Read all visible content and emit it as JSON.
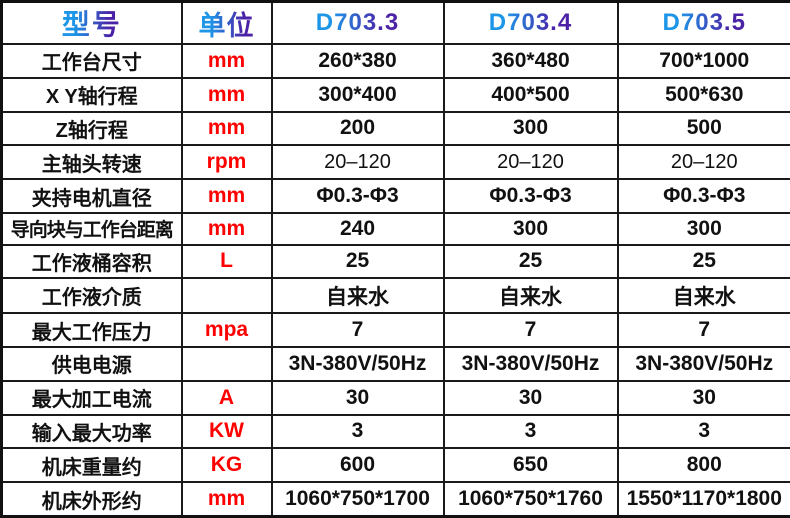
{
  "table": {
    "header": {
      "model_label": "型号",
      "unit_label": "单位",
      "models": [
        "D703.3",
        "D703.4",
        "D703.5"
      ]
    },
    "rows": [
      {
        "label": "工作台尺寸",
        "unit": "mm",
        "values": [
          "260*380",
          "360*480",
          "700*1000"
        ]
      },
      {
        "label": "X Y轴行程",
        "unit": "mm",
        "values": [
          "300*400",
          "400*500",
          "500*630"
        ]
      },
      {
        "label": "Z轴行程",
        "unit": "mm",
        "values": [
          "200",
          "300",
          "500"
        ]
      },
      {
        "label": "主轴头转速",
        "unit": "rpm",
        "values": [
          "20–120",
          "20–120",
          "20–120"
        ]
      },
      {
        "label": "夹持电机直径",
        "unit": "mm",
        "values": [
          "Φ0.3-Φ3",
          "Φ0.3-Φ3",
          "Φ0.3-Φ3"
        ]
      },
      {
        "label": "导向块与工作台距离",
        "unit": "mm",
        "values": [
          "240",
          "300",
          "300"
        ]
      },
      {
        "label": "工作液桶容积",
        "unit": "L",
        "values": [
          "25",
          "25",
          "25"
        ]
      },
      {
        "label": "工作液介质",
        "unit": "",
        "values": [
          "自来水",
          "自来水",
          "自来水"
        ]
      },
      {
        "label": "最大工作压力",
        "unit": "mpa",
        "values": [
          "7",
          "7",
          "7"
        ]
      },
      {
        "label": "供电电源",
        "unit": "",
        "values": [
          "3N-380V/50Hz",
          "3N-380V/50Hz",
          "3N-380V/50Hz"
        ]
      },
      {
        "label": "最大加工电流",
        "unit": "A",
        "values": [
          "30",
          "30",
          "30"
        ]
      },
      {
        "label": "输入最大功率",
        "unit": "KW",
        "values": [
          "3",
          "3",
          "3"
        ]
      },
      {
        "label": "机床重量约",
        "unit": "KG",
        "values": [
          "600",
          "650",
          "800"
        ]
      },
      {
        "label": "机床外形约",
        "unit": "mm",
        "values": [
          "1060*750*1700",
          "1060*750*1760",
          "1550*1170*1800"
        ]
      }
    ],
    "colors": {
      "unit_text": "#FF0000",
      "header_gradient_start": "#1E96E8",
      "header_gradient_end": "#4B21A6",
      "body_text": "#111111",
      "border": "#1A1A1A",
      "background": "#FFFFFF"
    }
  }
}
